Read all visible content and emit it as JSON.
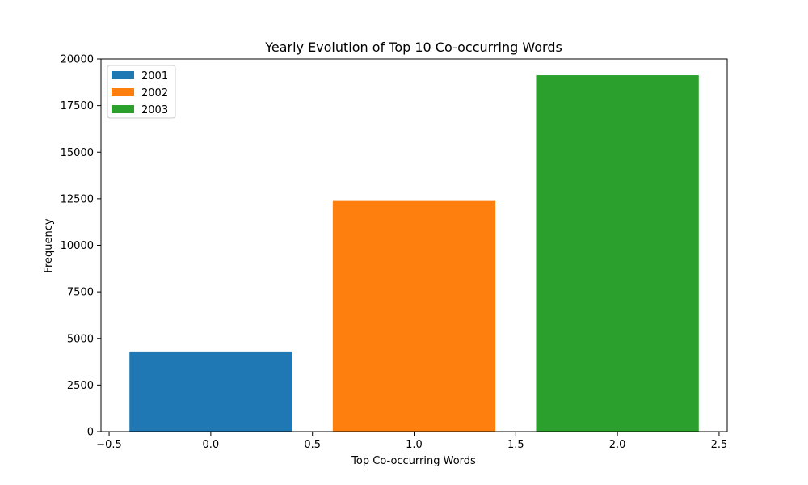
{
  "chart_data": {
    "type": "bar",
    "title": "Yearly Evolution of Top 10 Co-occurring Words",
    "xlabel": "Top Co-occurring Words",
    "ylabel": "Frequency",
    "xlim": [
      -0.54,
      2.54
    ],
    "ylim": [
      0,
      20000
    ],
    "x_ticks": [
      -0.5,
      0.0,
      0.5,
      1.0,
      1.5,
      2.0,
      2.5
    ],
    "x_tick_labels": [
      "−0.5",
      "0.0",
      "0.5",
      "1.0",
      "1.5",
      "2.0",
      "2.5"
    ],
    "y_ticks": [
      0,
      2500,
      5000,
      7500,
      10000,
      12500,
      15000,
      17500,
      20000
    ],
    "y_tick_labels": [
      "0",
      "2500",
      "5000",
      "7500",
      "10000",
      "12500",
      "15000",
      "17500",
      "20000"
    ],
    "bar_width": 0.8,
    "grid": false,
    "legend_position": "top-left",
    "series": [
      {
        "name": "2001",
        "x": 0,
        "value": 4300,
        "color": "#1f77b4"
      },
      {
        "name": "2002",
        "x": 1,
        "value": 12380,
        "color": "#ff7f0e"
      },
      {
        "name": "2003",
        "x": 2,
        "value": 19130,
        "color": "#2ca02c"
      }
    ]
  }
}
